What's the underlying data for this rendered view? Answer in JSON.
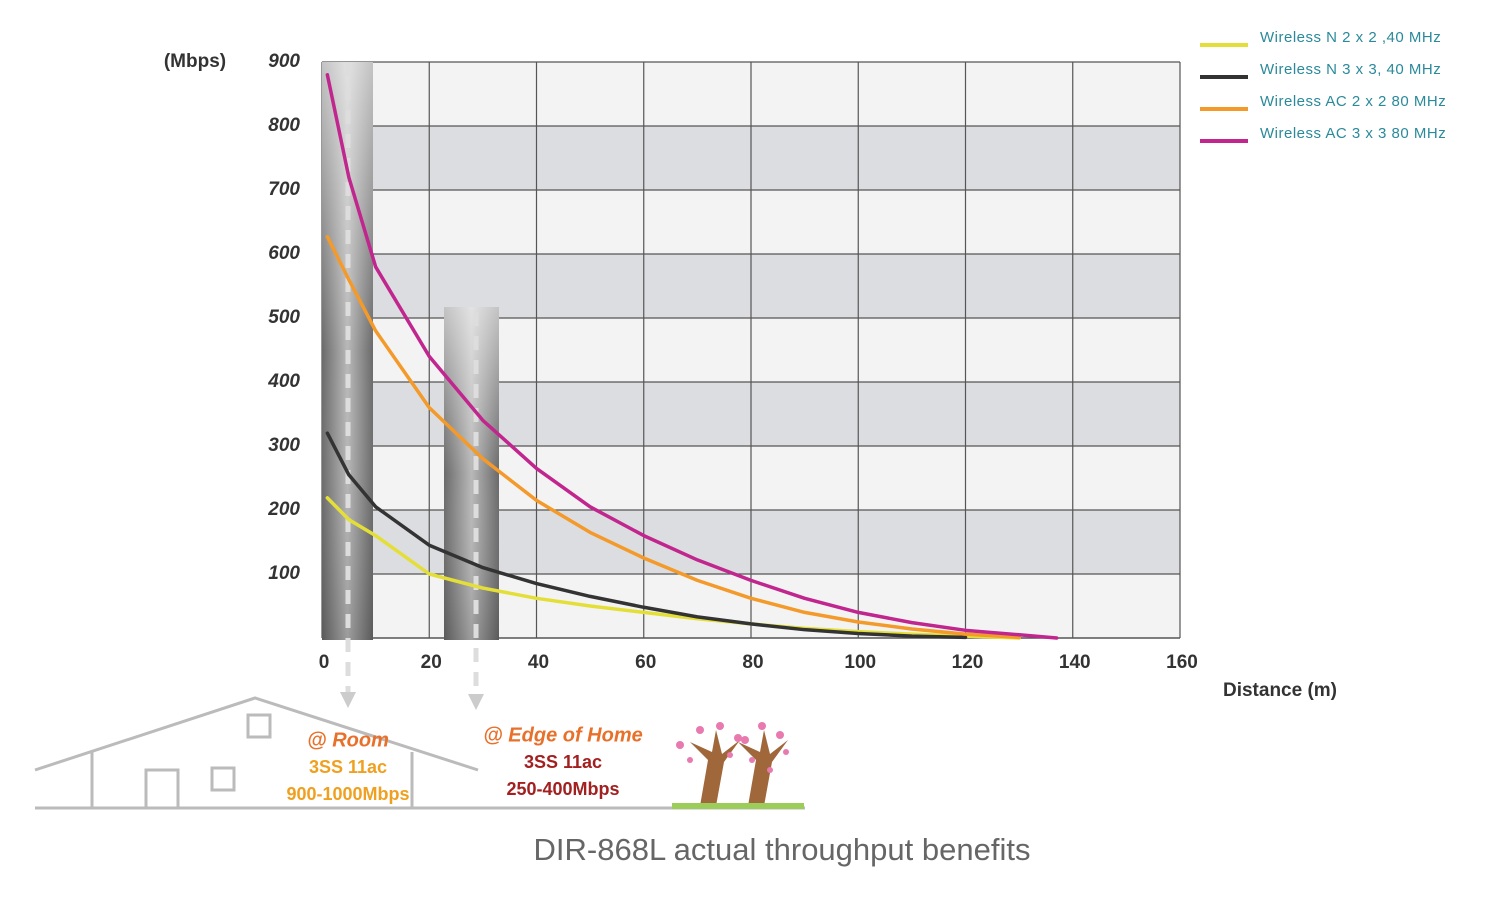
{
  "chart_data": {
    "type": "line",
    "title": "DIR-868L actual throughput benefits",
    "y_label": "(Mbps)",
    "x_label": "Distance  (m)",
    "x": [
      1,
      5,
      10,
      20,
      30,
      40,
      50,
      60,
      70,
      80,
      90,
      100,
      110,
      120,
      130,
      137
    ],
    "series": [
      {
        "name": "Wireless N 2 x 2 ,40 MHz",
        "color": "#e4df38",
        "values": [
          219,
          185,
          160,
          100,
          78,
          62,
          50,
          40,
          30,
          22,
          15,
          10,
          6,
          3,
          0,
          null
        ]
      },
      {
        "name": "Wireless N 3 x 3, 40 MHz",
        "color": "#333333",
        "values": [
          320,
          255,
          205,
          145,
          110,
          85,
          65,
          48,
          33,
          22,
          13,
          7,
          3,
          1,
          null,
          null
        ]
      },
      {
        "name": "Wireless AC 2 x 2 80 MHz",
        "color": "#f39a2b",
        "values": [
          627,
          560,
          480,
          360,
          280,
          215,
          165,
          125,
          90,
          62,
          40,
          25,
          14,
          6,
          1,
          null
        ]
      },
      {
        "name": "Wireless AC 3 x 3 80 MHz",
        "color": "#c0268e",
        "values": [
          880,
          720,
          580,
          440,
          340,
          265,
          205,
          160,
          122,
          90,
          62,
          40,
          24,
          12,
          5,
          0
        ]
      }
    ],
    "xlim": [
      0,
      160
    ],
    "ylim": [
      0,
      900
    ],
    "xticks": [
      0,
      20,
      40,
      60,
      80,
      100,
      120,
      140,
      160
    ],
    "yticks": [
      100,
      200,
      300,
      400,
      500,
      600,
      700,
      800,
      900
    ],
    "grid": true,
    "legend": "top-right",
    "annotations": {
      "room": [
        "@ Room",
        "3SS 11ac",
        "900-1000Mbps"
      ],
      "edge": [
        "@ Edge  of Home",
        "3SS 11ac",
        "250-400Mbps"
      ]
    }
  }
}
